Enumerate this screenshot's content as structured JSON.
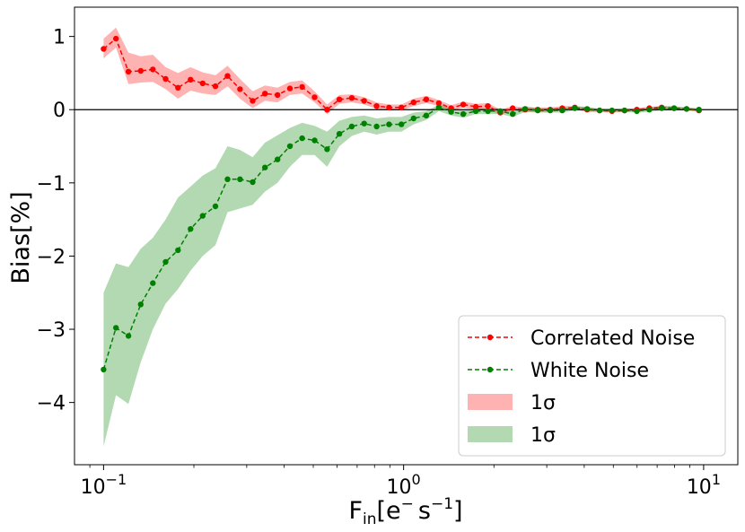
{
  "chart_data": {
    "type": "line",
    "title": "",
    "xlabel": {
      "main": "F",
      "sub": "in",
      "rest": "[e",
      "sup1": "−",
      "mid": "s",
      "sup2": "−1",
      "end": "]"
    },
    "ylabel": "Bias[%]",
    "xscale": "log",
    "xlim": [
      0.08,
      13
    ],
    "ylim": [
      -4.85,
      1.4
    ],
    "xticks": [
      {
        "value": 0.1,
        "base": "10",
        "exp": "−1"
      },
      {
        "value": 1,
        "base": "10",
        "exp": "0"
      },
      {
        "value": 10,
        "base": "10",
        "exp": "1"
      }
    ],
    "yticks": [
      {
        "value": 1,
        "label": "1"
      },
      {
        "value": 0,
        "label": "0"
      },
      {
        "value": -1,
        "label": "−1"
      },
      {
        "value": -2,
        "label": "−2"
      },
      {
        "value": -3,
        "label": "−3"
      },
      {
        "value": -4,
        "label": "−4"
      }
    ],
    "hline": 0,
    "x": [
      0.1,
      0.11,
      0.121,
      0.133,
      0.146,
      0.161,
      0.177,
      0.195,
      0.214,
      0.236,
      0.259,
      0.285,
      0.314,
      0.345,
      0.38,
      0.418,
      0.459,
      0.505,
      0.556,
      0.611,
      0.672,
      0.739,
      0.813,
      0.894,
      0.983,
      1.08,
      1.19,
      1.31,
      1.44,
      1.58,
      1.74,
      1.91,
      2.1,
      2.31,
      2.54,
      2.8,
      3.08,
      3.38,
      3.72,
      4.09,
      4.5,
      4.95,
      5.45,
      5.99,
      6.59,
      7.25,
      7.97,
      8.77,
      9.65
    ],
    "series": [
      {
        "name": "Correlated Noise",
        "color": "#ff0000",
        "values": [
          0.83,
          0.97,
          0.52,
          0.53,
          0.55,
          0.42,
          0.3,
          0.41,
          0.36,
          0.32,
          0.46,
          0.28,
          0.12,
          0.22,
          0.2,
          0.29,
          0.31,
          0.17,
          0.0,
          0.14,
          0.16,
          0.12,
          0.05,
          0.03,
          0.03,
          0.1,
          0.14,
          0.09,
          0.02,
          0.07,
          0.04,
          0.05,
          -0.04,
          0.02,
          0.0,
          0.0,
          0.0,
          0.02,
          0.03,
          0.0,
          -0.01,
          -0.02,
          -0.01,
          0.0,
          0.02,
          0.03,
          0.02,
          0.01,
          -0.01
        ],
        "band_upper": [
          0.97,
          1.12,
          0.78,
          0.73,
          0.75,
          0.58,
          0.5,
          0.58,
          0.51,
          0.47,
          0.6,
          0.42,
          0.25,
          0.33,
          0.3,
          0.38,
          0.4,
          0.25,
          0.07,
          0.2,
          0.21,
          0.17,
          0.1,
          0.07,
          0.07,
          0.15,
          0.19,
          0.13,
          0.06,
          0.11,
          0.08,
          0.09,
          0.0,
          0.05,
          0.03,
          0.03,
          0.03,
          0.05,
          0.05,
          0.03,
          0.01,
          0.0,
          0.01,
          0.02,
          0.04,
          0.05,
          0.04,
          0.03,
          0.01
        ],
        "band_lower": [
          0.7,
          0.85,
          0.35,
          0.37,
          0.38,
          0.28,
          0.15,
          0.26,
          0.22,
          0.2,
          0.32,
          0.15,
          0.02,
          0.12,
          0.1,
          0.2,
          0.22,
          0.1,
          -0.06,
          0.08,
          0.1,
          0.07,
          0.01,
          -0.01,
          -0.01,
          0.05,
          0.09,
          0.05,
          -0.02,
          0.03,
          0.0,
          0.01,
          -0.07,
          -0.01,
          -0.03,
          -0.03,
          -0.03,
          -0.01,
          0.01,
          -0.03,
          -0.03,
          -0.04,
          -0.03,
          -0.02,
          0.0,
          0.01,
          0.0,
          -0.01,
          -0.03
        ]
      },
      {
        "name": "White Noise",
        "color": "#008000",
        "values": [
          -3.55,
          -2.98,
          -3.09,
          -2.66,
          -2.37,
          -2.08,
          -1.92,
          -1.63,
          -1.45,
          -1.32,
          -0.95,
          -0.95,
          -0.99,
          -0.79,
          -0.68,
          -0.5,
          -0.39,
          -0.42,
          -0.54,
          -0.33,
          -0.23,
          -0.19,
          -0.23,
          -0.2,
          -0.2,
          -0.12,
          -0.08,
          0.03,
          -0.03,
          -0.06,
          -0.02,
          -0.02,
          -0.02,
          -0.06,
          0.01,
          -0.01,
          -0.01,
          -0.01,
          0.02,
          0.01,
          -0.01,
          -0.01,
          -0.01,
          -0.02,
          0.0,
          0.02,
          0.02,
          0.01,
          0.0
        ],
        "band_upper": [
          -2.5,
          -2.1,
          -2.15,
          -1.9,
          -1.75,
          -1.5,
          -1.2,
          -1.05,
          -0.9,
          -0.8,
          -0.5,
          -0.55,
          -0.65,
          -0.45,
          -0.35,
          -0.25,
          -0.18,
          -0.22,
          -0.3,
          -0.15,
          -0.1,
          -0.08,
          -0.12,
          -0.1,
          -0.1,
          -0.04,
          -0.02,
          0.07,
          0.02,
          -0.01,
          0.02,
          0.02,
          0.02,
          -0.02,
          0.05,
          0.02,
          0.02,
          0.02,
          0.05,
          0.04,
          0.01,
          0.01,
          0.01,
          0.0,
          0.03,
          0.05,
          0.05,
          0.03,
          0.02
        ],
        "band_lower": [
          -4.6,
          -3.9,
          -4.02,
          -3.45,
          -3.0,
          -2.65,
          -2.45,
          -2.2,
          -2.0,
          -1.85,
          -1.4,
          -1.35,
          -1.3,
          -1.12,
          -1.0,
          -0.78,
          -0.62,
          -0.62,
          -0.78,
          -0.5,
          -0.36,
          -0.3,
          -0.34,
          -0.3,
          -0.3,
          -0.2,
          -0.14,
          -0.02,
          -0.08,
          -0.11,
          -0.06,
          -0.06,
          -0.06,
          -0.1,
          -0.03,
          -0.04,
          -0.04,
          -0.04,
          -0.01,
          -0.02,
          -0.03,
          -0.03,
          -0.03,
          -0.04,
          -0.03,
          -0.01,
          -0.01,
          -0.01,
          -0.02
        ]
      }
    ],
    "legend": {
      "position": "bottom-right",
      "entries": [
        {
          "label": "Correlated Noise",
          "kind": "line",
          "color": "#ff0000"
        },
        {
          "label": "White Noise",
          "kind": "line",
          "color": "#008000"
        },
        {
          "label": "1σ",
          "kind": "band",
          "color": "#ff0000"
        },
        {
          "label": "1σ",
          "kind": "band",
          "color": "#008000"
        }
      ]
    }
  }
}
